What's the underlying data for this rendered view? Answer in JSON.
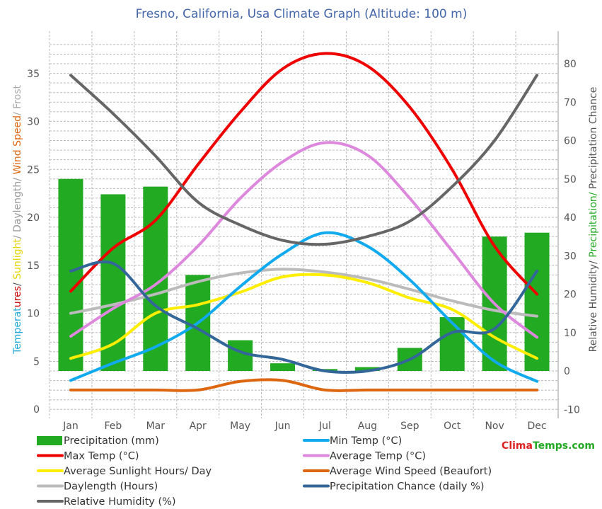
{
  "chart_data": {
    "type": "bar",
    "title": "Fresno, California, Usa Climate Graph (Altitude: 100 m)",
    "months": [
      "Jan",
      "Feb",
      "Mar",
      "Apr",
      "May",
      "Jun",
      "Jul",
      "Aug",
      "Sep",
      "Oct",
      "Nov",
      "Dec"
    ],
    "left_axis": {
      "ticks": [
        "0",
        "5",
        "10",
        "15",
        "20",
        "25",
        "30",
        "35"
      ],
      "ylim": [
        0,
        37.5
      ],
      "label_segments": [
        {
          "text": "Temperat",
          "color": "#22aadd"
        },
        {
          "text": "ures",
          "color": "#cc0000"
        },
        {
          "text": "/ ",
          "color": "#555555"
        },
        {
          "text": "Sunlight",
          "color": "#e6d400"
        },
        {
          "text": "/ Daylength/ ",
          "color": "#999999"
        },
        {
          "text": "Wind Speed",
          "color": "#dd6611"
        },
        {
          "text": "/ Frost",
          "color": "#aaaaaa"
        }
      ]
    },
    "right_axis": {
      "ticks": [
        "-10",
        "0",
        "10",
        "20",
        "30",
        "40",
        "50",
        "60",
        "70",
        "80"
      ],
      "ylim": [
        -10,
        85
      ],
      "label_segments": [
        {
          "text": "Relative Humidity/ ",
          "color": "#555555"
        },
        {
          "text": "Precipitation/ ",
          "color": "#22aa22"
        },
        {
          "text": "Precipitation Chance",
          "color": "#555555"
        }
      ]
    },
    "series": [
      {
        "name": "Precipitation (mm)",
        "axis": "right",
        "type": "bar",
        "color": "#22aa22",
        "values": [
          50,
          46,
          48,
          25,
          8,
          2,
          0.5,
          1,
          6,
          14,
          35,
          36
        ]
      },
      {
        "name": "Min Temp (°C)",
        "axis": "left",
        "type": "line",
        "color": "#11aaee",
        "values": [
          3.0,
          4.8,
          6.5,
          9.0,
          12.8,
          16.2,
          18.4,
          17.0,
          13.5,
          9.0,
          5.0,
          2.9
        ]
      },
      {
        "name": "Max Temp (°C)",
        "axis": "left",
        "type": "line",
        "color": "#ee0000",
        "values": [
          12.3,
          16.8,
          19.7,
          25.5,
          31.0,
          35.5,
          37.1,
          35.8,
          31.5,
          25.0,
          17.0,
          12.0
        ]
      },
      {
        "name": "Average Temp (°C)",
        "axis": "left",
        "type": "line",
        "color": "#dd88dd",
        "values": [
          7.6,
          10.5,
          13.0,
          17.0,
          22.0,
          25.8,
          27.8,
          26.5,
          22.0,
          16.5,
          11.0,
          7.5
        ]
      },
      {
        "name": "Average Sunlight Hours/ Day",
        "axis": "left",
        "type": "line",
        "color": "#ffee00",
        "values": [
          5.3,
          6.8,
          10.0,
          10.9,
          12.2,
          13.8,
          14.0,
          13.2,
          11.6,
          10.4,
          7.5,
          5.3
        ]
      },
      {
        "name": "Average Wind Speed (Beaufort)",
        "axis": "left",
        "type": "line",
        "color": "#dd6611",
        "values": [
          2.0,
          2.0,
          2.0,
          2.0,
          2.9,
          3.0,
          2.0,
          2.0,
          2.0,
          2.0,
          2.0,
          2.0
        ]
      },
      {
        "name": "Daylength (Hours)",
        "axis": "left",
        "type": "line",
        "color": "#bbbbbb",
        "values": [
          10.0,
          10.9,
          12.0,
          13.3,
          14.2,
          14.6,
          14.3,
          13.6,
          12.5,
          11.3,
          10.3,
          9.7
        ]
      },
      {
        "name": "Precipitation Chance (daily %)",
        "axis": "right",
        "type": "line",
        "color": "#336699",
        "values": [
          26,
          28,
          17,
          11,
          5,
          3,
          0,
          0,
          3,
          10,
          11,
          26
        ]
      },
      {
        "name": "Relative Humidity (%)",
        "axis": "right",
        "type": "line",
        "color": "#666666",
        "values": [
          77,
          67,
          56,
          44,
          38,
          34,
          33,
          35,
          39,
          48,
          60,
          77
        ]
      }
    ]
  },
  "brand": {
    "part1": "Clima",
    "part2": "Temps",
    "part3": ".com",
    "color1": "#dd2222",
    "color2": "#22aa22"
  }
}
